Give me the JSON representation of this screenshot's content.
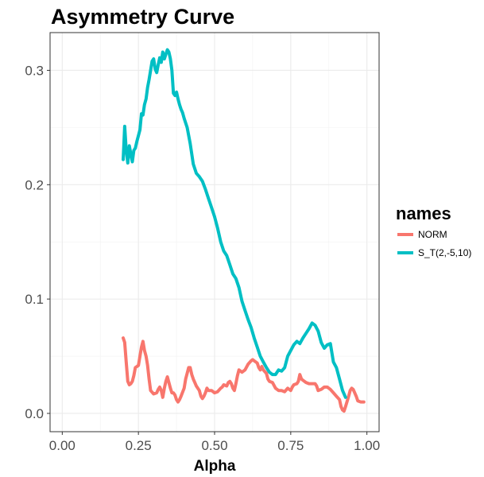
{
  "chart_data": {
    "type": "line",
    "title": "Asymmetry Curve",
    "xlabel": "Alpha",
    "ylabel": "",
    "xlim": [
      -0.04,
      1.04
    ],
    "ylim": [
      -0.016,
      0.333
    ],
    "x_ticks": [
      0.0,
      0.25,
      0.5,
      0.75,
      1.0
    ],
    "x_tick_labels": [
      "0.00",
      "0.25",
      "0.50",
      "0.75",
      "1.00"
    ],
    "y_ticks": [
      0.0,
      0.1,
      0.2,
      0.3
    ],
    "y_tick_labels": [
      "0.0",
      "0.1",
      "0.2",
      "0.3"
    ],
    "grid": true,
    "legend": {
      "title": "names",
      "position": "right"
    },
    "series": [
      {
        "name": "NORM",
        "color": "#F8766D",
        "points": [
          [
            0.2,
            0.066
          ],
          [
            0.205,
            0.062
          ],
          [
            0.21,
            0.045
          ],
          [
            0.215,
            0.028
          ],
          [
            0.22,
            0.025
          ],
          [
            0.225,
            0.026
          ],
          [
            0.23,
            0.028
          ],
          [
            0.235,
            0.033
          ],
          [
            0.24,
            0.04
          ],
          [
            0.245,
            0.041
          ],
          [
            0.25,
            0.042
          ],
          [
            0.255,
            0.05
          ],
          [
            0.26,
            0.058
          ],
          [
            0.265,
            0.063
          ],
          [
            0.27,
            0.055
          ],
          [
            0.275,
            0.05
          ],
          [
            0.28,
            0.042
          ],
          [
            0.285,
            0.03
          ],
          [
            0.29,
            0.02
          ],
          [
            0.3,
            0.017
          ],
          [
            0.31,
            0.018
          ],
          [
            0.315,
            0.021
          ],
          [
            0.32,
            0.023
          ],
          [
            0.325,
            0.02
          ],
          [
            0.33,
            0.014
          ],
          [
            0.335,
            0.022
          ],
          [
            0.34,
            0.028
          ],
          [
            0.345,
            0.032
          ],
          [
            0.35,
            0.027
          ],
          [
            0.355,
            0.022
          ],
          [
            0.36,
            0.018
          ],
          [
            0.365,
            0.018
          ],
          [
            0.37,
            0.016
          ],
          [
            0.375,
            0.012
          ],
          [
            0.38,
            0.01
          ],
          [
            0.385,
            0.012
          ],
          [
            0.39,
            0.015
          ],
          [
            0.4,
            0.022
          ],
          [
            0.405,
            0.03
          ],
          [
            0.41,
            0.035
          ],
          [
            0.415,
            0.04
          ],
          [
            0.42,
            0.04
          ],
          [
            0.425,
            0.034
          ],
          [
            0.43,
            0.03
          ],
          [
            0.435,
            0.027
          ],
          [
            0.44,
            0.024
          ],
          [
            0.45,
            0.02
          ],
          [
            0.455,
            0.015
          ],
          [
            0.46,
            0.013
          ],
          [
            0.465,
            0.015
          ],
          [
            0.47,
            0.018
          ],
          [
            0.475,
            0.022
          ],
          [
            0.48,
            0.02
          ],
          [
            0.49,
            0.02
          ],
          [
            0.5,
            0.018
          ],
          [
            0.51,
            0.019
          ],
          [
            0.52,
            0.022
          ],
          [
            0.525,
            0.023
          ],
          [
            0.53,
            0.025
          ],
          [
            0.54,
            0.024
          ],
          [
            0.545,
            0.027
          ],
          [
            0.55,
            0.028
          ],
          [
            0.555,
            0.026
          ],
          [
            0.56,
            0.022
          ],
          [
            0.565,
            0.02
          ],
          [
            0.57,
            0.026
          ],
          [
            0.575,
            0.033
          ],
          [
            0.58,
            0.038
          ],
          [
            0.59,
            0.036
          ],
          [
            0.6,
            0.038
          ],
          [
            0.61,
            0.043
          ],
          [
            0.62,
            0.046
          ],
          [
            0.625,
            0.047
          ],
          [
            0.63,
            0.046
          ],
          [
            0.64,
            0.044
          ],
          [
            0.645,
            0.04
          ],
          [
            0.65,
            0.038
          ],
          [
            0.655,
            0.041
          ],
          [
            0.66,
            0.038
          ],
          [
            0.67,
            0.035
          ],
          [
            0.675,
            0.03
          ],
          [
            0.68,
            0.028
          ],
          [
            0.69,
            0.027
          ],
          [
            0.7,
            0.022
          ],
          [
            0.71,
            0.02
          ],
          [
            0.72,
            0.02
          ],
          [
            0.73,
            0.019
          ],
          [
            0.74,
            0.022
          ],
          [
            0.75,
            0.02
          ],
          [
            0.755,
            0.023
          ],
          [
            0.76,
            0.025
          ],
          [
            0.77,
            0.026
          ],
          [
            0.775,
            0.028
          ],
          [
            0.78,
            0.034
          ],
          [
            0.785,
            0.03
          ],
          [
            0.79,
            0.029
          ],
          [
            0.8,
            0.027
          ],
          [
            0.81,
            0.026
          ],
          [
            0.82,
            0.026
          ],
          [
            0.83,
            0.026
          ],
          [
            0.835,
            0.024
          ],
          [
            0.84,
            0.02
          ],
          [
            0.85,
            0.021
          ],
          [
            0.86,
            0.023
          ],
          [
            0.87,
            0.023
          ],
          [
            0.88,
            0.021
          ],
          [
            0.89,
            0.018
          ],
          [
            0.9,
            0.015
          ],
          [
            0.91,
            0.012
          ],
          [
            0.915,
            0.006
          ],
          [
            0.92,
            0.003
          ],
          [
            0.925,
            0.002
          ],
          [
            0.93,
            0.006
          ],
          [
            0.94,
            0.015
          ],
          [
            0.945,
            0.02
          ],
          [
            0.95,
            0.022
          ],
          [
            0.955,
            0.021
          ],
          [
            0.96,
            0.018
          ],
          [
            0.965,
            0.015
          ],
          [
            0.97,
            0.011
          ],
          [
            0.98,
            0.01
          ],
          [
            0.99,
            0.01
          ]
        ]
      },
      {
        "name": "S_T(2,-5,10)",
        "color": "#00BFC4",
        "points": [
          [
            0.2,
            0.222
          ],
          [
            0.205,
            0.251
          ],
          [
            0.21,
            0.23
          ],
          [
            0.215,
            0.219
          ],
          [
            0.22,
            0.234
          ],
          [
            0.225,
            0.227
          ],
          [
            0.23,
            0.22
          ],
          [
            0.235,
            0.23
          ],
          [
            0.24,
            0.232
          ],
          [
            0.245,
            0.238
          ],
          [
            0.25,
            0.243
          ],
          [
            0.255,
            0.248
          ],
          [
            0.26,
            0.262
          ],
          [
            0.265,
            0.261
          ],
          [
            0.27,
            0.27
          ],
          [
            0.275,
            0.275
          ],
          [
            0.28,
            0.285
          ],
          [
            0.285,
            0.292
          ],
          [
            0.29,
            0.3
          ],
          [
            0.295,
            0.308
          ],
          [
            0.3,
            0.31
          ],
          [
            0.305,
            0.301
          ],
          [
            0.31,
            0.298
          ],
          [
            0.315,
            0.305
          ],
          [
            0.32,
            0.311
          ],
          [
            0.325,
            0.307
          ],
          [
            0.33,
            0.316
          ],
          [
            0.335,
            0.31
          ],
          [
            0.34,
            0.314
          ],
          [
            0.345,
            0.318
          ],
          [
            0.35,
            0.316
          ],
          [
            0.355,
            0.31
          ],
          [
            0.36,
            0.3
          ],
          [
            0.365,
            0.28
          ],
          [
            0.37,
            0.278
          ],
          [
            0.375,
            0.281
          ],
          [
            0.38,
            0.275
          ],
          [
            0.385,
            0.27
          ],
          [
            0.39,
            0.266
          ],
          [
            0.395,
            0.263
          ],
          [
            0.4,
            0.258
          ],
          [
            0.41,
            0.25
          ],
          [
            0.42,
            0.236
          ],
          [
            0.43,
            0.218
          ],
          [
            0.44,
            0.21
          ],
          [
            0.45,
            0.207
          ],
          [
            0.46,
            0.203
          ],
          [
            0.47,
            0.196
          ],
          [
            0.48,
            0.188
          ],
          [
            0.49,
            0.18
          ],
          [
            0.5,
            0.172
          ],
          [
            0.51,
            0.162
          ],
          [
            0.52,
            0.15
          ],
          [
            0.53,
            0.142
          ],
          [
            0.54,
            0.138
          ],
          [
            0.55,
            0.13
          ],
          [
            0.56,
            0.122
          ],
          [
            0.57,
            0.118
          ],
          [
            0.58,
            0.11
          ],
          [
            0.59,
            0.098
          ],
          [
            0.6,
            0.09
          ],
          [
            0.61,
            0.082
          ],
          [
            0.62,
            0.075
          ],
          [
            0.63,
            0.066
          ],
          [
            0.64,
            0.058
          ],
          [
            0.65,
            0.05
          ],
          [
            0.66,
            0.045
          ],
          [
            0.67,
            0.04
          ],
          [
            0.68,
            0.036
          ],
          [
            0.69,
            0.034
          ],
          [
            0.7,
            0.034
          ],
          [
            0.71,
            0.038
          ],
          [
            0.72,
            0.037
          ],
          [
            0.73,
            0.04
          ],
          [
            0.74,
            0.05
          ],
          [
            0.75,
            0.055
          ],
          [
            0.76,
            0.06
          ],
          [
            0.77,
            0.063
          ],
          [
            0.78,
            0.061
          ],
          [
            0.79,
            0.066
          ],
          [
            0.8,
            0.07
          ],
          [
            0.81,
            0.074
          ],
          [
            0.82,
            0.079
          ],
          [
            0.83,
            0.077
          ],
          [
            0.84,
            0.072
          ],
          [
            0.85,
            0.062
          ],
          [
            0.86,
            0.057
          ],
          [
            0.87,
            0.06
          ],
          [
            0.88,
            0.061
          ],
          [
            0.89,
            0.045
          ],
          [
            0.9,
            0.04
          ],
          [
            0.91,
            0.03
          ],
          [
            0.92,
            0.02
          ],
          [
            0.93,
            0.014
          ]
        ]
      }
    ]
  }
}
